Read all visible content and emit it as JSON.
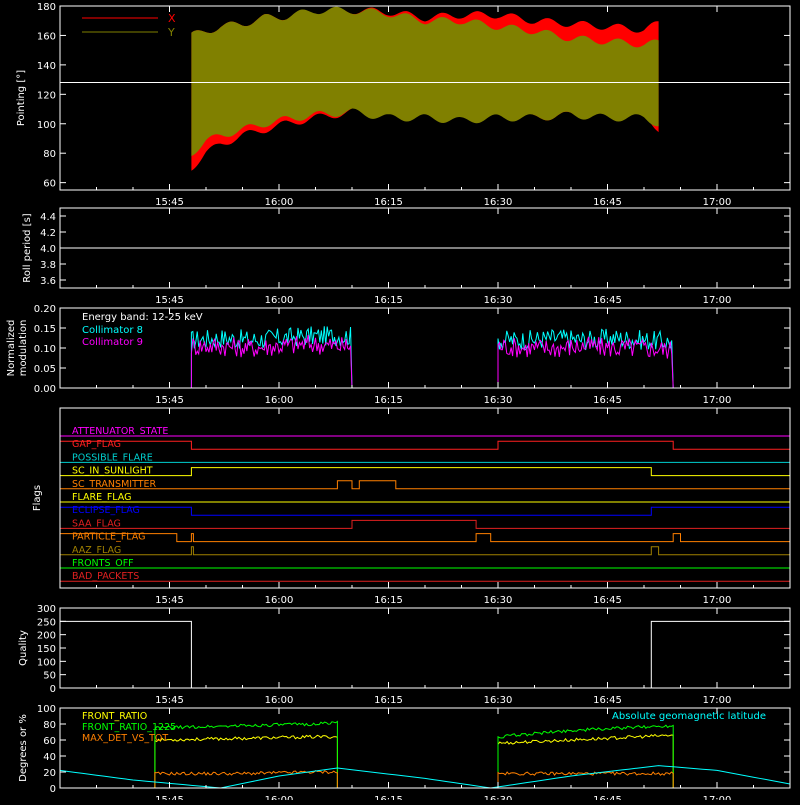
{
  "chart_data": [
    {
      "type": "area",
      "ylabel": "Pointing [°]",
      "ylim": [
        55,
        180
      ],
      "yticks": [
        60,
        80,
        100,
        120,
        140,
        160,
        180
      ],
      "xtick_labels": [
        "15:45",
        "16:00",
        "16:15",
        "16:30",
        "16:45",
        "17:00"
      ],
      "reference_line": 128,
      "grid": false,
      "legend_position": "top-left",
      "legend": [
        {
          "label": "X",
          "color": "#ff0000"
        },
        {
          "label": "Y",
          "color": "#808000"
        }
      ],
      "series": [
        {
          "name": "X",
          "color": "#ff0000",
          "x": [
            "15:48",
            "15:50",
            "15:52",
            "15:55",
            "15:58",
            "16:01",
            "16:05",
            "16:10",
            "16:15",
            "16:20",
            "16:25",
            "16:30",
            "16:35",
            "16:40",
            "16:45",
            "16:50",
            "16:52"
          ],
          "upper": [
            160,
            163,
            166,
            168,
            172,
            173,
            176,
            177,
            176,
            172,
            174,
            174,
            170,
            168,
            166,
            164,
            168
          ],
          "lower": [
            70,
            80,
            86,
            92,
            96,
            100,
            104,
            108,
            110,
            110,
            108,
            106,
            104,
            106,
            108,
            108,
            96
          ]
        },
        {
          "name": "Y",
          "color": "#808000",
          "x": [
            "15:48",
            "15:50",
            "15:52",
            "15:55",
            "15:58",
            "16:01",
            "16:05",
            "16:10",
            "16:15",
            "16:20",
            "16:25",
            "16:30",
            "16:35",
            "16:40",
            "16:45",
            "16:50",
            "16:52"
          ],
          "upper": [
            160,
            163,
            166,
            168,
            172,
            173,
            177,
            177,
            175,
            170,
            170,
            166,
            163,
            158,
            156,
            154,
            155
          ],
          "lower": [
            80,
            88,
            92,
            96,
            100,
            103,
            106,
            108,
            104,
            104,
            102,
            104,
            104,
            106,
            104,
            104,
            100
          ]
        }
      ]
    },
    {
      "type": "line",
      "ylabel": "Roll period [s]",
      "ylim": [
        3.5,
        4.5
      ],
      "yticks": [
        3.6,
        3.8,
        4.0,
        4.2,
        4.4
      ],
      "xtick_labels": [
        "15:45",
        "16:00",
        "16:15",
        "16:30",
        "16:45",
        "17:00"
      ],
      "series": [
        {
          "name": "",
          "color": "#ffffff",
          "x": [
            "15:30",
            "17:10"
          ],
          "values": [
            4.0,
            4.0
          ]
        }
      ]
    },
    {
      "type": "line",
      "ylabel": "Normalized modulation",
      "ylim": [
        0,
        0.2
      ],
      "yticks": [
        0.0,
        0.05,
        0.1,
        0.15,
        0.2
      ],
      "xtick_labels": [
        "15:45",
        "16:00",
        "16:15",
        "16:30",
        "16:45",
        "17:00"
      ],
      "annotation": "Energy band: 12-25 keV",
      "series": [
        {
          "name": "Collimator 8",
          "color": "#00ffff",
          "segments": [
            {
              "x": [
                "15:48",
                "15:52",
                "15:56",
                "16:00",
                "16:04",
                "16:08",
                "16:10"
              ],
              "values": [
                0.12,
                0.125,
                0.12,
                0.125,
                0.13,
                0.13,
                0.13
              ]
            },
            {
              "x": [
                "16:30",
                "16:34",
                "16:38",
                "16:42",
                "16:46",
                "16:50",
                "16:54"
              ],
              "values": [
                0.12,
                0.12,
                0.125,
                0.12,
                0.125,
                0.12,
                0.115
              ]
            }
          ]
        },
        {
          "name": "Collimator 9",
          "color": "#ff00ff",
          "segments": [
            {
              "x": [
                "15:48",
                "15:52",
                "15:56",
                "16:00",
                "16:04",
                "16:08",
                "16:10"
              ],
              "values": [
                0.105,
                0.105,
                0.1,
                0.105,
                0.11,
                0.105,
                0.105
              ]
            },
            {
              "x": [
                "16:30",
                "16:34",
                "16:38",
                "16:42",
                "16:46",
                "16:50",
                "16:54"
              ],
              "values": [
                0.105,
                0.1,
                0.1,
                0.105,
                0.1,
                0.1,
                0.095
              ]
            }
          ]
        }
      ]
    },
    {
      "type": "line",
      "ylabel": "Flags",
      "xtick_labels": [
        "15:45",
        "16:00",
        "16:15",
        "16:30",
        "16:45",
        "17:00"
      ],
      "flags": [
        {
          "name": "ATTENUATOR_STATE",
          "color": "#ff00ff",
          "on": []
        },
        {
          "name": "GAP_FLAG",
          "color": "#ff2020",
          "on": [
            [
              "15:30",
              "15:48"
            ],
            [
              "16:30",
              "16:54"
            ]
          ]
        },
        {
          "name": "POSSIBLE_FLARE",
          "color": "#00d0d0",
          "on": []
        },
        {
          "name": "SC_IN_SUNLIGHT",
          "color": "#ffff00",
          "on": [
            [
              "15:48",
              "16:51"
            ]
          ]
        },
        {
          "name": "SC_TRANSMITTER",
          "color": "#ff8000",
          "on": [
            [
              "16:08",
              "16:10"
            ],
            [
              "16:11",
              "16:16"
            ]
          ]
        },
        {
          "name": "FLARE_FLAG",
          "color": "#ffff00",
          "on": []
        },
        {
          "name": "ECLIPSE_FLAG",
          "color": "#0000ff",
          "on": [
            [
              "15:30",
              "15:48"
            ],
            [
              "16:51",
              "17:10"
            ]
          ]
        },
        {
          "name": "SAA_FLAG",
          "color": "#e02020",
          "on": [
            [
              "16:10",
              "16:27"
            ]
          ]
        },
        {
          "name": "PARTICLE_FLAG",
          "color": "#ff8000",
          "on": [
            [
              "15:30",
              "15:46"
            ],
            [
              "15:48",
              "15:48"
            ],
            [
              "16:27",
              "16:29"
            ],
            [
              "16:54",
              "16:55"
            ]
          ]
        },
        {
          "name": "AAZ_FLAG",
          "color": "#a08000",
          "on": [
            [
              "15:48",
              "15:48"
            ],
            [
              "16:51",
              "16:52"
            ]
          ]
        },
        {
          "name": "FRONTS_OFF",
          "color": "#00ff00",
          "on": []
        },
        {
          "name": "BAD_PACKETS",
          "color": "#e02020",
          "on": []
        }
      ]
    },
    {
      "type": "line",
      "ylabel": "Quality",
      "ylim": [
        0,
        300
      ],
      "yticks": [
        0,
        50,
        100,
        150,
        200,
        250,
        300
      ],
      "xtick_labels": [
        "15:45",
        "16:00",
        "16:15",
        "16:30",
        "16:45",
        "17:00"
      ],
      "series": [
        {
          "name": "",
          "color": "#ffffff",
          "x": [
            "15:30",
            "15:48",
            "15:48",
            "16:51",
            "16:51",
            "17:10"
          ],
          "values": [
            250,
            250,
            0,
            0,
            250,
            250
          ]
        }
      ]
    },
    {
      "type": "line",
      "ylabel": "Degrees or %",
      "ylim": [
        0,
        100
      ],
      "yticks": [
        0,
        20,
        40,
        60,
        80,
        100
      ],
      "xtick_labels": [
        "15:45",
        "16:00",
        "16:15",
        "16:30",
        "16:45",
        "17:00"
      ],
      "legend_position": "top-left",
      "series": [
        {
          "name": "FRONT_RATIO",
          "color": "#ffff00",
          "x": [
            "15:43",
            "15:55",
            "16:05",
            "16:08",
            "16:30",
            "16:40",
            "16:54"
          ],
          "values": [
            60,
            62,
            64,
            64,
            56,
            60,
            66
          ]
        },
        {
          "name": "FRONT_RATIO_1225",
          "color": "#00ff00",
          "x": [
            "15:43",
            "15:55",
            "16:05",
            "16:08",
            "16:30",
            "16:40",
            "16:54"
          ],
          "values": [
            75,
            78,
            80,
            82,
            64,
            72,
            78
          ]
        },
        {
          "name": "MAX_DET_VS_TOT",
          "color": "#ff8000",
          "x": [
            "15:43",
            "15:55",
            "16:05",
            "16:08",
            "16:30",
            "16:40",
            "16:54"
          ],
          "values": [
            18,
            18,
            20,
            20,
            18,
            18,
            18
          ]
        },
        {
          "name": "Absolute geomagnetic latitude",
          "color": "#00ffff",
          "x": [
            "15:30",
            "15:40",
            "15:52",
            "16:00",
            "16:08",
            "16:20",
            "16:29",
            "16:40",
            "16:52",
            "17:00",
            "17:10"
          ],
          "values": [
            22,
            10,
            0,
            15,
            25,
            12,
            0,
            15,
            28,
            22,
            5
          ]
        }
      ]
    }
  ]
}
